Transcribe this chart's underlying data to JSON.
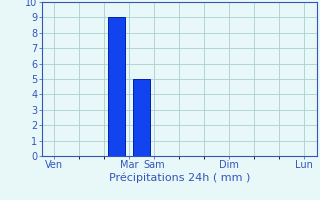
{
  "title": "Précipitations 24h ( mm )",
  "background_color": "#e8f8f8",
  "grid_color": "#aacfcf",
  "bar_color": "#1144ee",
  "bar_edge_color": "#0022aa",
  "ylim": [
    0,
    10
  ],
  "yticks": [
    0,
    1,
    2,
    3,
    4,
    5,
    6,
    7,
    8,
    9,
    10
  ],
  "x_tick_labels": [
    "Ven",
    "Mar",
    "Sam",
    "Dim",
    "Lun"
  ],
  "x_tick_positions": [
    0,
    3,
    4,
    7,
    10
  ],
  "num_slots": 11,
  "bars": [
    {
      "x": 2.5,
      "height": 9.0
    },
    {
      "x": 3.5,
      "height": 5.0
    }
  ],
  "bar_width": 0.7,
  "tick_fontsize": 7,
  "tick_color": "#3355bb",
  "axis_color": "#3355bb",
  "title_fontsize": 8,
  "spine_color": "#3355bb"
}
